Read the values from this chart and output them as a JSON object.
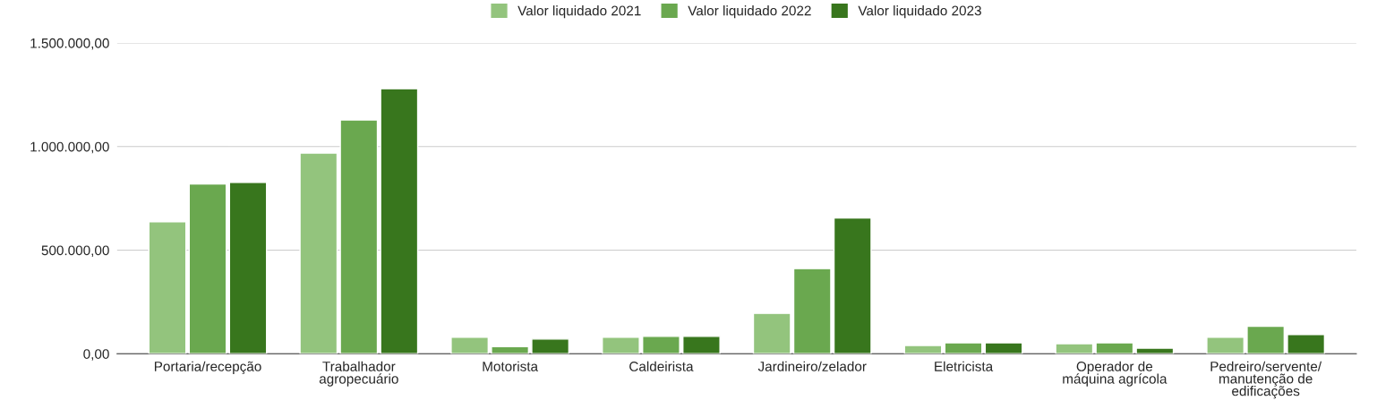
{
  "chart_data": {
    "type": "bar",
    "categories": [
      "Portaria/recepção",
      "Trabalhador\nagropecuário",
      "Motorista",
      "Caldeirista",
      "Jardineiro/zelador",
      "Eletricista",
      "Operador de\nmáquina agrícola",
      "Pedreiro/servente/\nmanutenção de\nedificações"
    ],
    "series": [
      {
        "name": "Valor liquidado 2021",
        "color": "#93c47d",
        "values": [
          637000,
          969000,
          80000,
          80000,
          195000,
          40000,
          49000,
          80000
        ]
      },
      {
        "name": "Valor liquidado 2022",
        "color": "#6aa84f",
        "values": [
          819000,
          1128000,
          35000,
          84000,
          411000,
          53000,
          53000,
          133000
        ]
      },
      {
        "name": "Valor liquidado 2023",
        "color": "#38761d",
        "values": [
          827000,
          1279000,
          71000,
          84000,
          655000,
          53000,
          27000,
          93000
        ]
      }
    ],
    "ylim": [
      0,
      1500000
    ],
    "yticks": [
      {
        "value": 0,
        "label": "0,00"
      },
      {
        "value": 500000,
        "label": "500.000,00"
      },
      {
        "value": 1000000,
        "label": "1.000.000,00"
      },
      {
        "value": 1500000,
        "label": "1.500.000,00"
      }
    ],
    "grid": "y",
    "legend": "top"
  }
}
